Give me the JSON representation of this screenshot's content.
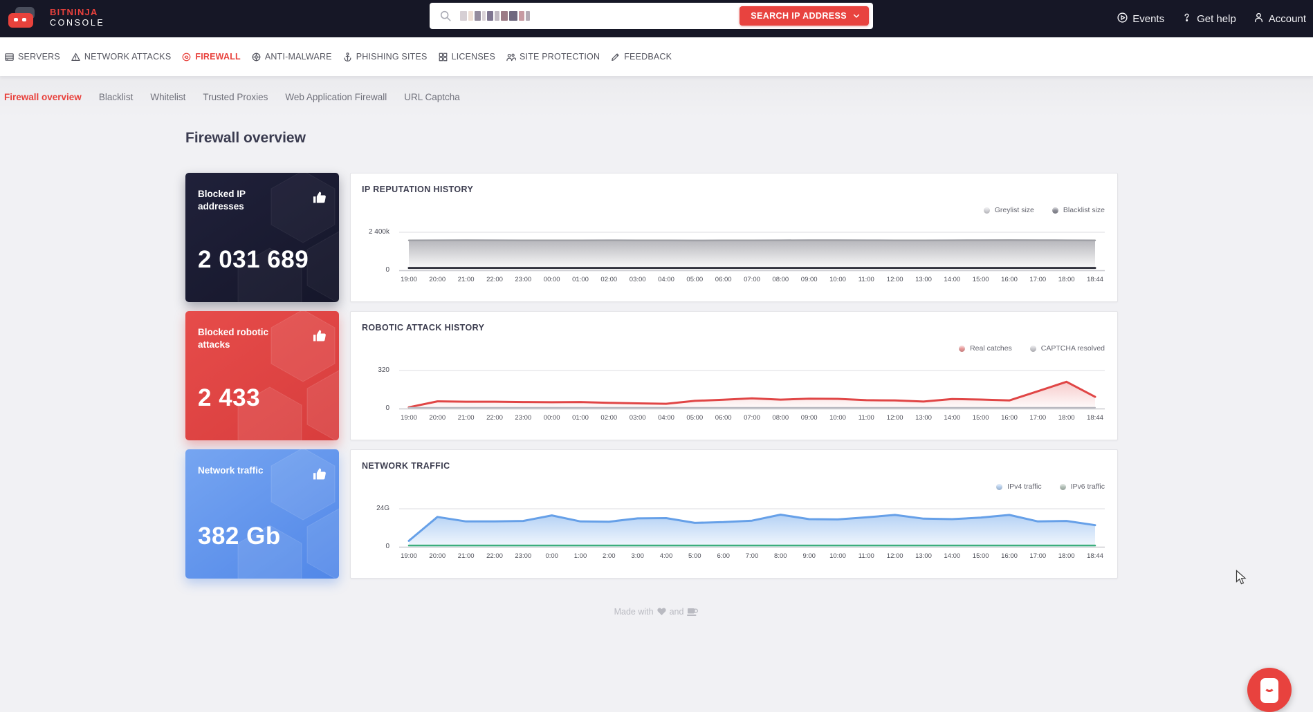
{
  "header": {
    "logo": {
      "line1": "BITNINJA",
      "line2": "CONSOLE"
    },
    "search": {
      "button_label": "SEARCH IP ADDRESS",
      "query_redacted": true
    },
    "menu": [
      {
        "label": "Events",
        "icon": "events-icon"
      },
      {
        "label": "Get help",
        "icon": "help-icon"
      },
      {
        "label": "Account",
        "icon": "account-icon"
      }
    ]
  },
  "nav": {
    "items": [
      {
        "label": "SERVERS",
        "icon": "servers-icon",
        "active": false
      },
      {
        "label": "NETWORK ATTACKS",
        "icon": "warning-icon",
        "active": false
      },
      {
        "label": "FIREWALL",
        "icon": "firewall-icon",
        "active": true
      },
      {
        "label": "ANTI-MALWARE",
        "icon": "anti-malware-icon",
        "active": false
      },
      {
        "label": "PHISHING SITES",
        "icon": "anchor-icon",
        "active": false
      },
      {
        "label": "LICENSES",
        "icon": "licenses-icon",
        "active": false
      },
      {
        "label": "SITE PROTECTION",
        "icon": "site-protection-icon",
        "active": false
      },
      {
        "label": "FEEDBACK",
        "icon": "feedback-icon",
        "active": false
      }
    ]
  },
  "subnav": {
    "items": [
      {
        "label": "Firewall overview",
        "active": true
      },
      {
        "label": "Blacklist",
        "active": false
      },
      {
        "label": "Whitelist",
        "active": false
      },
      {
        "label": "Trusted Proxies",
        "active": false
      },
      {
        "label": "Web Application Firewall",
        "active": false
      },
      {
        "label": "URL Captcha",
        "active": false
      }
    ]
  },
  "page": {
    "title": "Firewall overview"
  },
  "cards": [
    {
      "title": "Blocked IP addresses",
      "value": "2 031 689",
      "style": "dark",
      "icon": "thumbs-up-icon"
    },
    {
      "title": "Blocked robotic attacks",
      "value": "2 433",
      "style": "red",
      "icon": "thumbs-up-icon"
    },
    {
      "title": "Network traffic",
      "value": "382 Gb",
      "style": "blue",
      "icon": "thumbs-up-icon"
    }
  ],
  "footer": {
    "made_with": "Made with",
    "and": "and"
  },
  "colors": {
    "accent_red": "#e8413c",
    "header_bg": "#161726",
    "content_bg": "#f1f1f4"
  },
  "chart_data": [
    {
      "type": "area",
      "title": "IP REPUTATION HISTORY",
      "legend_position": "top-right",
      "unit": "thousand IPs",
      "ylim": [
        0,
        2400
      ],
      "y_axis_labels": {
        "max": "2 400k",
        "min": "0"
      },
      "grid": "top-and-baseline-only",
      "x": [
        "19:00",
        "20:00",
        "21:00",
        "22:00",
        "23:00",
        "00:00",
        "01:00",
        "02:00",
        "03:00",
        "04:00",
        "05:00",
        "06:00",
        "07:00",
        "08:00",
        "09:00",
        "10:00",
        "11:00",
        "12:00",
        "13:00",
        "14:00",
        "15:00",
        "16:00",
        "17:00",
        "18:00",
        "18:44"
      ],
      "series": [
        {
          "name": "Greylist size",
          "color": "#9fa0a6",
          "width": 2.5,
          "fill_top": "#b6b6bb",
          "fill_bottom": "#ffffff",
          "legend_dot": "#d9d9de",
          "values": [
            1952,
            1958,
            1960,
            1957,
            1953,
            1950,
            1952,
            1956,
            1951,
            1946,
            1942,
            1946,
            1951,
            1956,
            1960,
            1963,
            1958,
            1953,
            1951,
            1956,
            1961,
            1966,
            1961,
            1957,
            1954
          ]
        },
        {
          "name": "Blacklist size",
          "color": "#32333e",
          "width": 3,
          "legend_dot": "#8f909a",
          "values": [
            112,
            112,
            112,
            112,
            112,
            112,
            112,
            112,
            112,
            112,
            112,
            112,
            112,
            112,
            112,
            112,
            112,
            112,
            112,
            112,
            112,
            112,
            112,
            112,
            112
          ]
        }
      ]
    },
    {
      "type": "area",
      "title": "ROBOTIC ATTACK HISTORY",
      "legend_position": "top-right",
      "unit": "attacks",
      "ylim": [
        0,
        320
      ],
      "y_axis_labels": {
        "max": "320",
        "min": "0"
      },
      "grid": "top-and-baseline-only",
      "x": [
        "19:00",
        "20:00",
        "21:00",
        "22:00",
        "23:00",
        "00:00",
        "01:00",
        "02:00",
        "03:00",
        "04:00",
        "05:00",
        "06:00",
        "07:00",
        "08:00",
        "09:00",
        "10:00",
        "11:00",
        "12:00",
        "13:00",
        "14:00",
        "15:00",
        "16:00",
        "17:00",
        "18:00",
        "18:44"
      ],
      "series": [
        {
          "name": "Real catches",
          "color": "#e04545",
          "width": 3,
          "fill_top": "rgba(224,69,69,0.28)",
          "fill_bottom": "rgba(224,69,69,0.02)",
          "legend_dot": "#ee9a9a",
          "values": [
            5,
            58,
            55,
            55,
            52,
            50,
            52,
            45,
            40,
            36,
            62,
            72,
            85,
            73,
            82,
            80,
            68,
            66,
            56,
            78,
            74,
            66,
            148,
            232,
            98
          ]
        },
        {
          "name": "CAPTCHA resolved",
          "color": "#b9b9c0",
          "width": 2,
          "legend_dot": "#cfcfd4",
          "values": [
            2,
            2,
            2,
            2,
            2,
            2,
            2,
            2,
            2,
            2,
            2,
            2,
            2,
            2,
            2,
            2,
            2,
            2,
            2,
            2,
            2,
            2,
            2,
            2,
            2
          ]
        }
      ]
    },
    {
      "type": "area",
      "title": "NETWORK TRAFFIC",
      "legend_position": "top-right",
      "unit": "G",
      "ylim": [
        0,
        24
      ],
      "y_axis_labels": {
        "max": "24G",
        "min": "0"
      },
      "grid": "top-and-baseline-only",
      "x": [
        "19:00",
        "20:00",
        "21:00",
        "22:00",
        "23:00",
        "0:00",
        "1:00",
        "2:00",
        "3:00",
        "4:00",
        "5:00",
        "6:00",
        "7:00",
        "8:00",
        "9:00",
        "10:00",
        "11:00",
        "12:00",
        "13:00",
        "14:00",
        "15:00",
        "16:00",
        "17:00",
        "18:00",
        "18:44"
      ],
      "series": [
        {
          "name": "IPv4 traffic",
          "color": "#66a0e8",
          "width": 3,
          "fill_top": "#b5d2f5",
          "fill_bottom": "#f2f7fd",
          "legend_dot": "#b9d4f4",
          "values": [
            3.5,
            19.5,
            16.5,
            16.5,
            16.8,
            20.5,
            16.5,
            16.3,
            18.5,
            18.7,
            15.5,
            16,
            17,
            21,
            18,
            17.8,
            19.2,
            20.8,
            18.3,
            18,
            19,
            20.8,
            16.5,
            16.8,
            14
          ]
        },
        {
          "name": "IPv6 traffic",
          "color": "#3dae7d",
          "width": 2.5,
          "legend_dot": "#b6c4bb",
          "values": [
            0.4,
            0.4,
            0.4,
            0.4,
            0.4,
            0.4,
            0.4,
            0.4,
            0.4,
            0.4,
            0.4,
            0.4,
            0.4,
            0.4,
            0.4,
            0.4,
            0.4,
            0.4,
            0.4,
            0.4,
            0.4,
            0.4,
            0.4,
            0.4,
            0.4
          ]
        }
      ]
    }
  ]
}
